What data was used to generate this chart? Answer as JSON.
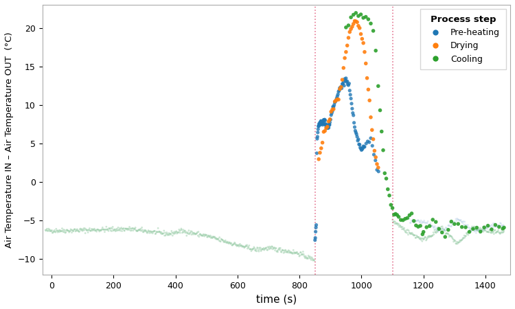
{
  "xlabel": "time (s)",
  "ylabel": "Air Temperature IN – Air Temperature OUT  (°C)",
  "xlim": [
    -30,
    1480
  ],
  "ylim": [
    -12,
    23
  ],
  "vline1": 850,
  "vline2": 1100,
  "legend_title": "Process step",
  "legend_labels": [
    "Pre-heating",
    "Drying",
    "Cooling"
  ],
  "colors": {
    "pre_heating": "#1f77b4",
    "drying": "#ff7f0e",
    "cooling": "#2ca02c",
    "bg_green": "#90c8a0",
    "bg_blue": "#a0c0e0"
  },
  "xticks": [
    0,
    200,
    400,
    600,
    800,
    1000,
    1200,
    1400
  ],
  "yticks": [
    -10,
    -5,
    0,
    5,
    10,
    15,
    20
  ]
}
